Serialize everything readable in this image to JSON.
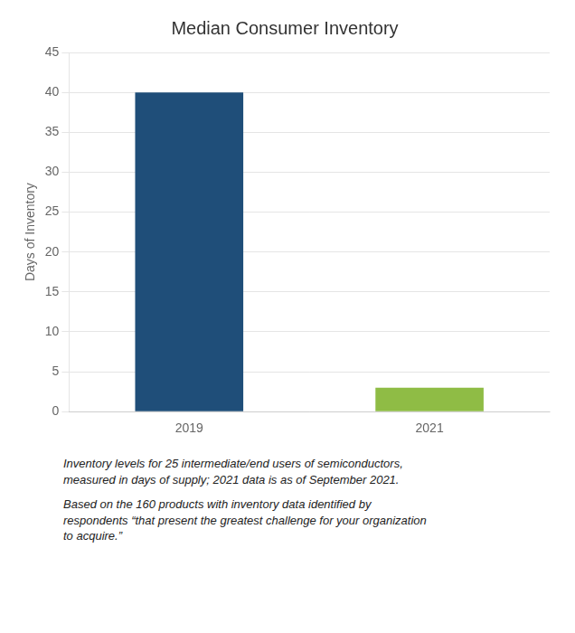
{
  "chart_data": {
    "type": "bar",
    "title": "Median Consumer Inventory",
    "categories": [
      "2019",
      "2021"
    ],
    "values": [
      40,
      3
    ],
    "colors": [
      "#1F4E79",
      "#8FBC45"
    ],
    "ylabel": "Days of Inventory",
    "ylim": [
      0,
      45
    ],
    "yticks": [
      0,
      5,
      10,
      15,
      20,
      25,
      30,
      35,
      40,
      45
    ],
    "grid": true,
    "annotations": [
      "Inventory levels for 25 intermediate/end users of semiconductors,\nmeasured in days of supply; 2021 data is as of September 2021.",
      "Based on the 160 products with inventory data identified by\nrespondents “that present the greatest challenge for your organization\nto acquire.”"
    ]
  }
}
